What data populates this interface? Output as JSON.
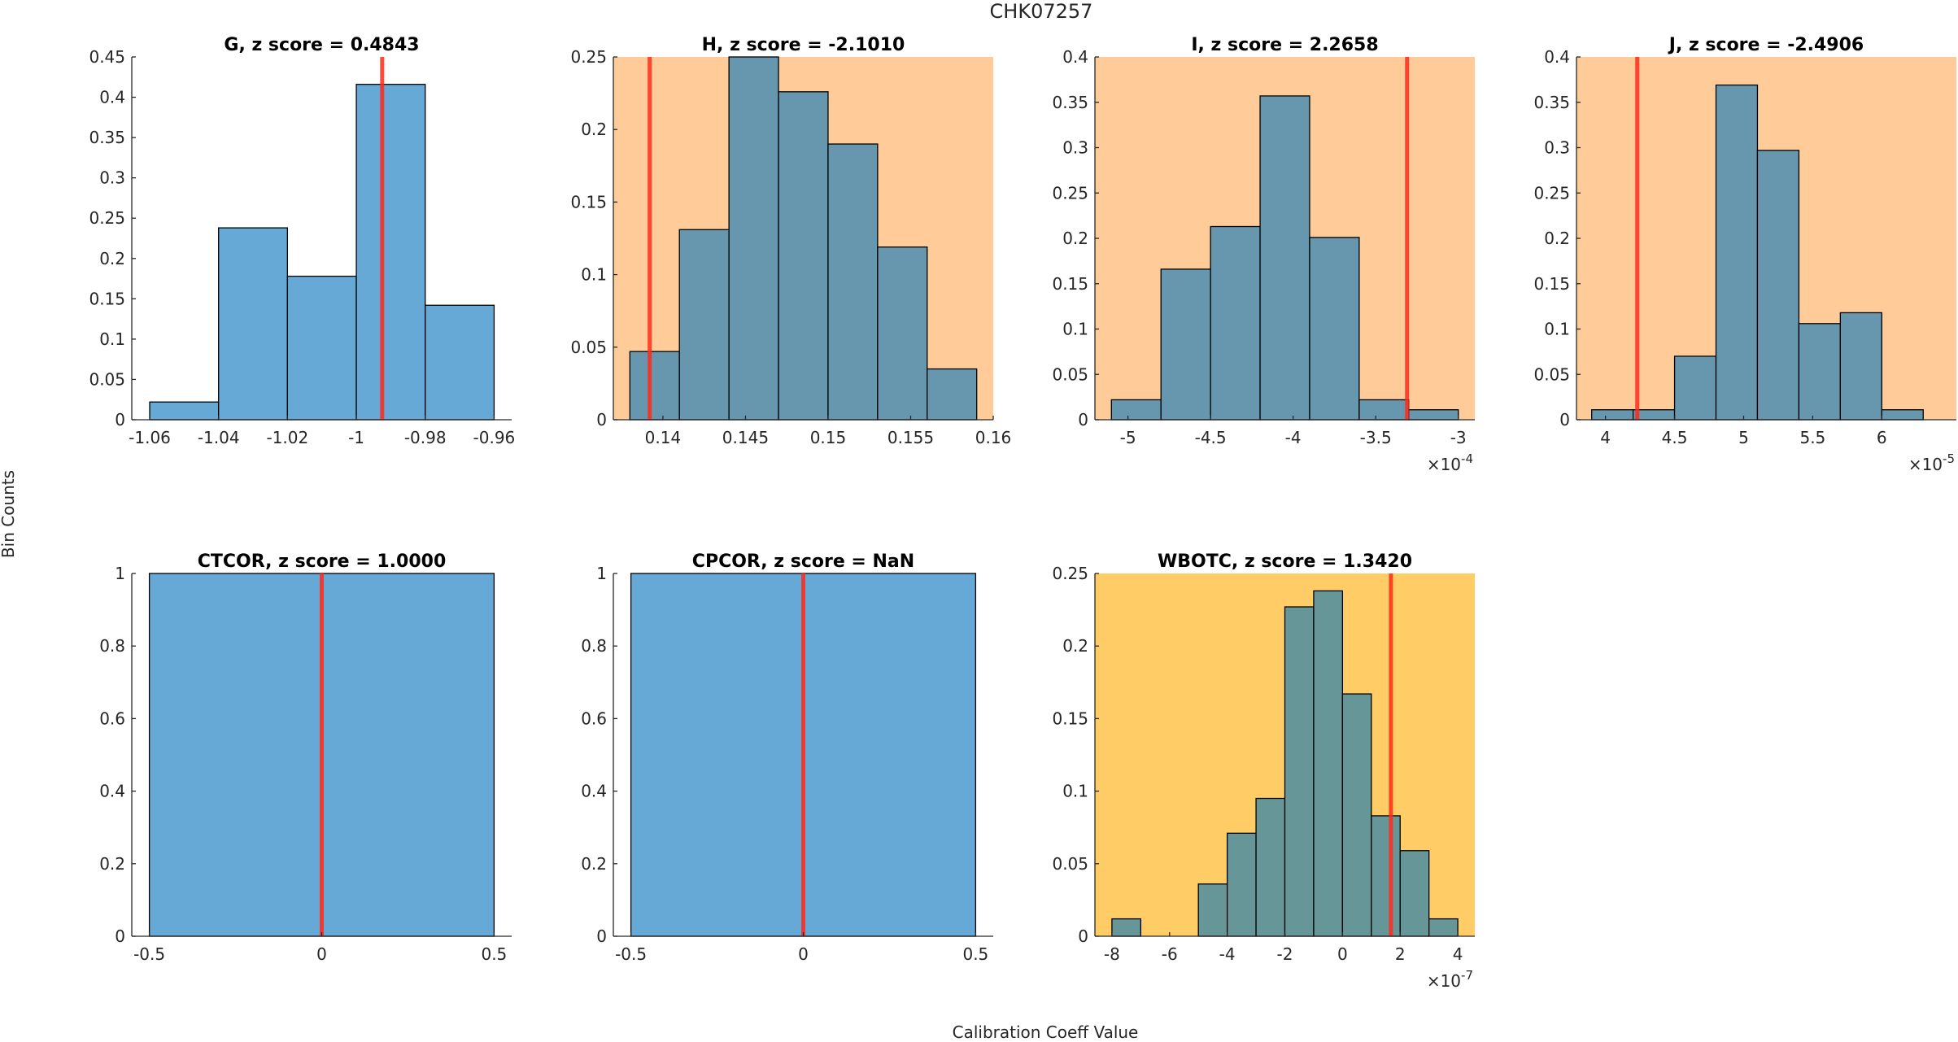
{
  "chart_data": {
    "type": "bar",
    "title": "CHK07257",
    "xlabel": "Calibration Coeff Value",
    "ylabel": "Bin Counts",
    "grid": false,
    "marker_color": "#FF0000",
    "default_face": "#FFFFFF",
    "subplots": [
      {
        "name": "G",
        "title": "G, z score = 0.4843",
        "zscore": "0.4843",
        "background": "#FFFFFF",
        "bar_color": "#67A9D6",
        "bin_edges": [
          -1.06,
          -1.04,
          -1.02,
          -1.0,
          -0.98,
          -0.96
        ],
        "values": [
          0.022,
          0.238,
          0.178,
          0.416,
          0.142
        ],
        "marker_x": -0.9925,
        "xlim": [
          -1.0652,
          -0.9549
        ],
        "ylim": [
          0,
          0.45
        ],
        "xticks": [
          -1.06,
          -1.04,
          -1.02,
          -1.0,
          -0.98,
          -0.96
        ],
        "xticklabels": [
          "-1.06",
          "-1.04",
          "-1.02",
          "-1",
          "-0.98",
          "-0.96"
        ],
        "yticks": [
          0,
          0.05,
          0.1,
          0.15,
          0.2,
          0.25,
          0.3,
          0.35,
          0.4,
          0.45
        ],
        "yticklabels": [
          "0",
          "0.05",
          "0.1",
          "0.15",
          "0.2",
          "0.25",
          "0.3",
          "0.35",
          "0.4",
          "0.45"
        ],
        "exponent": ""
      },
      {
        "name": "H",
        "title": "H, z score = -2.1010",
        "zscore": "-2.1010",
        "background": "#FFCC99",
        "bar_color": "#6797AE",
        "bin_edges": [
          0.138,
          0.141,
          0.144,
          0.147,
          0.15,
          0.153,
          0.156,
          0.159
        ],
        "values": [
          0.047,
          0.131,
          0.25,
          0.226,
          0.19,
          0.119,
          0.035
        ],
        "marker_x": 0.1392,
        "xlim": [
          0.137,
          0.16
        ],
        "ylim": [
          0,
          0.25
        ],
        "xticks": [
          0.14,
          0.145,
          0.15,
          0.155,
          0.16
        ],
        "xticklabels": [
          "0.14",
          "0.145",
          "0.15",
          "0.155",
          "0.16"
        ],
        "yticks": [
          0,
          0.05,
          0.1,
          0.15,
          0.2,
          0.25
        ],
        "yticklabels": [
          "0",
          "0.05",
          "0.1",
          "0.15",
          "0.2",
          "0.25"
        ],
        "exponent": ""
      },
      {
        "name": "I",
        "title": "I, z score = 2.2658",
        "zscore": "2.2658",
        "background": "#FFCC99",
        "bar_color": "#6797AE",
        "bin_edges": [
          -5.1,
          -4.8,
          -4.5,
          -4.2,
          -3.9,
          -3.6,
          -3.3,
          -3.0
        ],
        "values": [
          0.022,
          0.166,
          0.213,
          0.357,
          0.201,
          0.022,
          0.011
        ],
        "marker_x": -3.31,
        "xlim": [
          -5.2,
          -2.9
        ],
        "ylim": [
          0,
          0.4
        ],
        "xticks": [
          -5,
          -4.5,
          -4,
          -3.5,
          -3
        ],
        "xticklabels": [
          "-5",
          "-4.5",
          "-4",
          "-3.5",
          "-3"
        ],
        "yticks": [
          0,
          0.05,
          0.1,
          0.15,
          0.2,
          0.25,
          0.3,
          0.35,
          0.4
        ],
        "yticklabels": [
          "0",
          "0.05",
          "0.1",
          "0.15",
          "0.2",
          "0.25",
          "0.3",
          "0.35",
          "0.4"
        ],
        "exponent": "-4"
      },
      {
        "name": "J",
        "title": "J, z score = -2.4906",
        "zscore": "-2.4906",
        "background": "#FFCC99",
        "bar_color": "#6797AE",
        "bin_edges": [
          3.9,
          4.2,
          4.5,
          4.8,
          5.1,
          5.4,
          5.7,
          6.0,
          6.3
        ],
        "values": [
          0.011,
          0.011,
          0.07,
          0.369,
          0.297,
          0.106,
          0.118,
          0.011
        ],
        "marker_x": 4.23,
        "xlim": [
          3.79,
          6.54
        ],
        "ylim": [
          0,
          0.4
        ],
        "xticks": [
          4,
          4.5,
          5,
          5.5,
          6
        ],
        "xticklabels": [
          "4",
          "4.5",
          "5",
          "5.5",
          "6"
        ],
        "yticks": [
          0,
          0.05,
          0.1,
          0.15,
          0.2,
          0.25,
          0.3,
          0.35,
          0.4
        ],
        "yticklabels": [
          "0",
          "0.05",
          "0.1",
          "0.15",
          "0.2",
          "0.25",
          "0.3",
          "0.35",
          "0.4"
        ],
        "exponent": "-5"
      },
      {
        "name": "CTCOR",
        "title": "CTCOR, z score = 1.0000",
        "zscore": "1.0000",
        "background": "#FFFFFF",
        "bar_color": "#67A9D6",
        "bin_edges": [
          -0.5,
          0.5
        ],
        "values": [
          1.0
        ],
        "marker_x": 0,
        "xlim": [
          -0.551,
          0.551
        ],
        "ylim": [
          0,
          1
        ],
        "xticks": [
          -0.5,
          0,
          0.5
        ],
        "xticklabels": [
          "-0.5",
          "0",
          "0.5"
        ],
        "yticks": [
          0,
          0.2,
          0.4,
          0.6,
          0.8,
          1
        ],
        "yticklabels": [
          "0",
          "0.2",
          "0.4",
          "0.6",
          "0.8",
          "1"
        ],
        "exponent": ""
      },
      {
        "name": "CPCOR",
        "title": "CPCOR, z score = NaN",
        "zscore": "NaN",
        "background": "#FFFFFF",
        "bar_color": "#67A9D6",
        "bin_edges": [
          -0.5,
          0.5
        ],
        "values": [
          1.0
        ],
        "marker_x": 0,
        "xlim": [
          -0.551,
          0.551
        ],
        "ylim": [
          0,
          1
        ],
        "xticks": [
          -0.5,
          0,
          0.5
        ],
        "xticklabels": [
          "-0.5",
          "0",
          "0.5"
        ],
        "yticks": [
          0,
          0.2,
          0.4,
          0.6,
          0.8,
          1
        ],
        "yticklabels": [
          "0",
          "0.2",
          "0.4",
          "0.6",
          "0.8",
          "1"
        ],
        "exponent": ""
      },
      {
        "name": "WBOTC",
        "title": "WBOTC, z score = 1.3420",
        "zscore": "1.3420",
        "background": "#FFCC66",
        "bar_color": "#679699",
        "bin_edges": [
          -8,
          -7,
          -6,
          -5,
          -4,
          -3,
          -2,
          -1,
          0,
          1,
          2,
          3,
          4
        ],
        "values": [
          0.012,
          0,
          0,
          0.036,
          0.071,
          0.095,
          0.227,
          0.238,
          0.167,
          0.083,
          0.059,
          0.012
        ],
        "marker_x": 1.68,
        "xlim": [
          -8.59,
          4.59
        ],
        "ylim": [
          0,
          0.25
        ],
        "xticks": [
          -8,
          -6,
          -4,
          -2,
          0,
          2,
          4
        ],
        "xticklabels": [
          "-8",
          "-6",
          "-4",
          "-2",
          "0",
          "2",
          "4"
        ],
        "yticks": [
          0,
          0.05,
          0.1,
          0.15,
          0.2,
          0.25
        ],
        "yticklabels": [
          "0",
          "0.05",
          "0.1",
          "0.15",
          "0.2",
          "0.25"
        ],
        "exponent": "-7"
      }
    ]
  }
}
